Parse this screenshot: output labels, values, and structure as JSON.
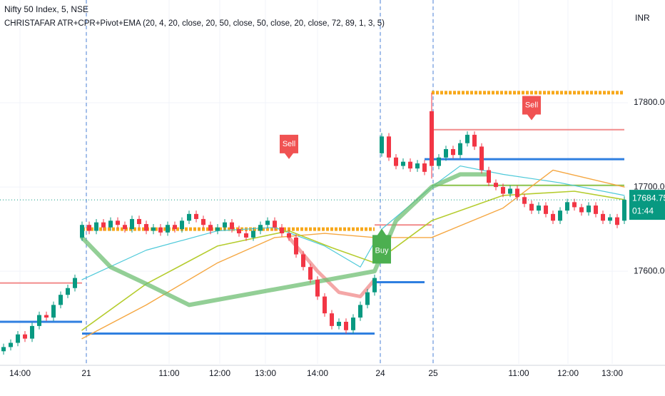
{
  "chart_data": {
    "type": "candlestick",
    "title": "Nifty 50 Index, 5, NSE",
    "subtitle": "CHRISTAFAR ATR+CPR+Pivot+EMA (20, 4, 20, close, 20, 50, close, 50, close, 20, close, 72, 89, 1, 3, 5)",
    "y_axis_label": "INR",
    "countdown": "01:44",
    "up_color": "#089981",
    "down_color": "#f23645",
    "grid": true,
    "xlim": [
      -0.5,
      87.5
    ],
    "ylim": [
      17490,
      17922
    ],
    "yticks": [
      {
        "value": 17600,
        "label": "17600.00"
      },
      {
        "value": 17700,
        "label": "17700.00"
      },
      {
        "value": 17800,
        "label": "17800.00"
      }
    ],
    "xticks": [
      {
        "value": 2.3,
        "label": "14:00"
      },
      {
        "value": 11.6,
        "label": "21"
      },
      {
        "value": 23.2,
        "label": "11:00"
      },
      {
        "value": 30.3,
        "label": "12:00"
      },
      {
        "value": 36.7,
        "label": "13:00"
      },
      {
        "value": 44,
        "label": "14:00"
      },
      {
        "value": 52.8,
        "label": "24"
      },
      {
        "value": 60.2,
        "label": "25"
      },
      {
        "value": 72.2,
        "label": "11:00"
      },
      {
        "value": 79.1,
        "label": "12:00"
      },
      {
        "value": 85.3,
        "label": "13:00"
      }
    ],
    "candles": {
      "open": [
        17505,
        17510,
        17515,
        17525,
        17520,
        17535,
        17548,
        17545,
        17560,
        17572,
        17580,
        17640,
        17655,
        17648,
        17658,
        17652,
        17660,
        17655,
        17650,
        17662,
        17656,
        17648,
        17652,
        17646,
        17655,
        17650,
        17660,
        17668,
        17662,
        17655,
        17648,
        17652,
        17658,
        17650,
        17645,
        17640,
        17648,
        17655,
        17660,
        17652,
        17645,
        17640,
        17620,
        17605,
        17590,
        17570,
        17550,
        17535,
        17540,
        17530,
        17545,
        17560,
        17575,
        17740,
        17760,
        17735,
        17725,
        17730,
        17722,
        17728,
        17790,
        17725,
        17735,
        17745,
        17738,
        17752,
        17762,
        17748,
        17720,
        17705,
        17700,
        17692,
        17698,
        17688,
        17680,
        17672,
        17678,
        17668,
        17660,
        17672,
        17682,
        17676,
        17670,
        17678,
        17668,
        17660,
        17664,
        17660
      ],
      "high": [
        17514,
        17519,
        17529,
        17529,
        17539,
        17552,
        17552,
        17564,
        17576,
        17584,
        17596,
        17659,
        17659,
        17662,
        17662,
        17664,
        17664,
        17659,
        17666,
        17666,
        17660,
        17656,
        17656,
        17659,
        17659,
        17664,
        17672,
        17672,
        17666,
        17659,
        17656,
        17662,
        17662,
        17654,
        17649,
        17652,
        17659,
        17664,
        17664,
        17656,
        17649,
        17644,
        17624,
        17609,
        17594,
        17574,
        17554,
        17544,
        17544,
        17549,
        17564,
        17579,
        17596,
        17764,
        17764,
        17739,
        17734,
        17734,
        17732,
        17732,
        17812,
        17739,
        17749,
        17749,
        17756,
        17766,
        17766,
        17752,
        17724,
        17709,
        17704,
        17702,
        17702,
        17692,
        17684,
        17682,
        17682,
        17672,
        17676,
        17686,
        17686,
        17680,
        17682,
        17682,
        17672,
        17668,
        17668,
        17689
      ],
      "low": [
        17501,
        17506,
        17511,
        17516,
        17516,
        17531,
        17541,
        17541,
        17556,
        17568,
        17576,
        17636,
        17644,
        17644,
        17648,
        17648,
        17651,
        17646,
        17646,
        17652,
        17644,
        17644,
        17642,
        17642,
        17646,
        17646,
        17656,
        17658,
        17651,
        17644,
        17644,
        17648,
        17646,
        17641,
        17636,
        17636,
        17644,
        17651,
        17648,
        17641,
        17636,
        17616,
        17601,
        17586,
        17566,
        17546,
        17531,
        17531,
        17526,
        17526,
        17541,
        17556,
        17571,
        17736,
        17731,
        17721,
        17721,
        17718,
        17718,
        17714,
        17710,
        17721,
        17731,
        17734,
        17734,
        17748,
        17744,
        17716,
        17701,
        17696,
        17688,
        17688,
        17684,
        17676,
        17668,
        17668,
        17664,
        17656,
        17656,
        17668,
        17672,
        17666,
        17666,
        17664,
        17656,
        17656,
        17651,
        17656
      ],
      "close": [
        17510,
        17515,
        17525,
        17520,
        17535,
        17548,
        17545,
        17560,
        17572,
        17580,
        17592,
        17655,
        17648,
        17658,
        17652,
        17660,
        17655,
        17650,
        17662,
        17656,
        17648,
        17652,
        17646,
        17655,
        17650,
        17660,
        17668,
        17662,
        17655,
        17648,
        17652,
        17658,
        17650,
        17645,
        17640,
        17648,
        17655,
        17660,
        17652,
        17645,
        17640,
        17620,
        17605,
        17590,
        17570,
        17550,
        17535,
        17540,
        17530,
        17545,
        17560,
        17575,
        17592,
        17760,
        17735,
        17725,
        17730,
        17722,
        17728,
        17718,
        17725,
        17735,
        17745,
        17738,
        17752,
        17762,
        17748,
        17720,
        17705,
        17700,
        17692,
        17698,
        17688,
        17680,
        17672,
        17678,
        17668,
        17660,
        17672,
        17682,
        17676,
        17670,
        17678,
        17668,
        17660,
        17664,
        17655,
        17684.75
      ]
    },
    "lines": [
      {
        "color": "#4dc9d9",
        "width": 1.2,
        "x": [
          11,
          20,
          30,
          38,
          45,
          50,
          53,
          60,
          64,
          70,
          78,
          87
        ],
        "values": [
          17590,
          17625,
          17648,
          17652,
          17630,
          17605,
          17650,
          17700,
          17725,
          17715,
          17705,
          17690
        ]
      },
      {
        "color": "#f5a742",
        "width": 1.4,
        "x": [
          11,
          20,
          30,
          38,
          45,
          52,
          60,
          70,
          77,
          87
        ],
        "values": [
          17520,
          17560,
          17610,
          17640,
          17645,
          17640,
          17640,
          17675,
          17720,
          17700
        ]
      },
      {
        "color": "#b5cc2e",
        "width": 1.6,
        "x": [
          11,
          20,
          30,
          40,
          46,
          52,
          60,
          70,
          80,
          87
        ],
        "values": [
          17530,
          17585,
          17630,
          17648,
          17628,
          17610,
          17660,
          17690,
          17695,
          17685
        ]
      },
      {
        "color": "#f08a8a",
        "width": 5,
        "x": [
          40,
          44,
          47,
          50,
          52
        ],
        "values": [
          17640,
          17600,
          17575,
          17570,
          17590
        ]
      },
      {
        "color": "#6fbf73",
        "width": 6,
        "x": [
          11,
          15,
          20,
          26,
          52,
          55,
          60,
          64,
          68
        ],
        "values": [
          17640,
          17605,
          17585,
          17560,
          17600,
          17660,
          17700,
          17715,
          17715
        ]
      }
    ],
    "levels": [
      {
        "value": 17650,
        "x": [
          11,
          52
        ],
        "color": "#f7a81b",
        "style": "dotted"
      },
      {
        "value": 17812,
        "x": [
          60,
          87
        ],
        "color": "#f7a81b",
        "style": "dotted"
      },
      {
        "value": 17586,
        "x": [
          -0.5,
          11
        ],
        "color": "#f28b8b",
        "style": "solid"
      },
      {
        "value": 17768,
        "x": [
          60,
          87
        ],
        "color": "#f28b8b",
        "style": "solid"
      },
      {
        "value": 17655,
        "x": [
          52,
          60
        ],
        "color": "#f28b8b",
        "style": "solid"
      },
      {
        "value": 17733,
        "x": [
          59,
          87
        ],
        "color": "#2f7fe0",
        "style": "thick"
      },
      {
        "value": 17540,
        "x": [
          -0.5,
          11
        ],
        "color": "#2f7fe0",
        "style": "thick"
      },
      {
        "value": 17526,
        "x": [
          11,
          52
        ],
        "color": "#2f7fe0",
        "style": "thick"
      },
      {
        "value": 17587,
        "x": [
          52,
          59
        ],
        "color": "#2f7fe0",
        "style": "thick"
      },
      {
        "value": 17702,
        "x": [
          60,
          87
        ],
        "color": "#8bc34a",
        "style": "solid"
      }
    ],
    "annotations": [
      {
        "label": "Sell",
        "x": 40,
        "value": 17740,
        "color": "#f05252",
        "dir": "down"
      },
      {
        "label": "Sell",
        "x": 74,
        "value": 17786,
        "color": "#f05252",
        "dir": "down"
      },
      {
        "label": "Buy",
        "x": 53,
        "value": 17621,
        "color": "#4caf50",
        "dir": "up"
      }
    ]
  }
}
